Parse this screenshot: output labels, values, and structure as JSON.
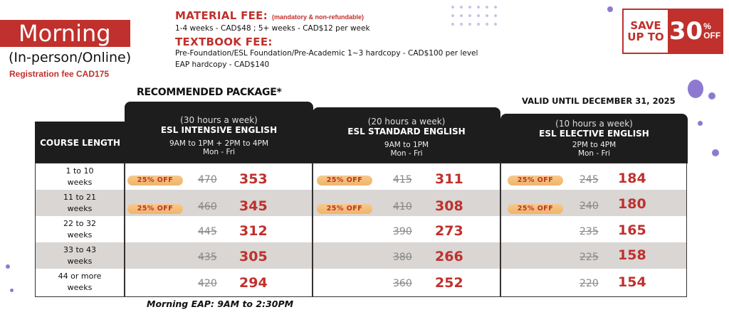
{
  "header": {
    "session_title": "Morning",
    "mode": "(In-person/Online)",
    "registration_fee": "Registration fee CAD175"
  },
  "fees": {
    "material_title": "MATERIAL FEE:",
    "material_note": "(mandatory & non-refundable)",
    "material_line": "1-4 weeks - CAD$48 ; 5+ weeks - CAD$12 per week",
    "textbook_title": "TEXTBOOK FEE:",
    "textbook_line1": "Pre-Foundation/ESL Foundation/Pre-Academic 1~3 hardcopy - CAD$100 per level",
    "textbook_line2": "EAP hardcopy - CAD$140"
  },
  "promo": {
    "save_line1": "SAVE",
    "save_line2": "UP TO",
    "percent": "30",
    "percent_sign": "%",
    "off": "OFF",
    "accent": "#c0302c"
  },
  "recommended_label": "RECOMMENDED PACKAGE*",
  "valid_until": "VALID UNTIL DECEMBER 31, 2025",
  "table": {
    "length_header": "COURSE LENGTH",
    "programs": [
      {
        "hours": "(30 hours a week)",
        "name": "ESL INTENSIVE ENGLISH",
        "time": "9AM to 1PM + 2PM to 4PM",
        "days": "Mon - Fri"
      },
      {
        "hours": "(20 hours a week)",
        "name": "ESL STANDARD ENGLISH",
        "time": "9AM to 1PM",
        "days": "Mon - Fri"
      },
      {
        "hours": "(10 hours a week)",
        "name": "ESL ELECTIVE ENGLISH",
        "time": "2PM to 4PM",
        "days": "Mon - Fri"
      }
    ],
    "discount_label": "25% OFF",
    "rows": [
      {
        "len1": "1 to 10",
        "len2": "weeks",
        "badge": true,
        "prices": [
          {
            "old": "470",
            "new": "353"
          },
          {
            "old": "415",
            "new": "311"
          },
          {
            "old": "245",
            "new": "184"
          }
        ]
      },
      {
        "len1": "11 to 21",
        "len2": "weeks",
        "badge": true,
        "prices": [
          {
            "old": "460",
            "new": "345"
          },
          {
            "old": "410",
            "new": "308"
          },
          {
            "old": "240",
            "new": "180"
          }
        ]
      },
      {
        "len1": "22 to 32",
        "len2": "weeks",
        "badge": false,
        "prices": [
          {
            "old": "445",
            "new": "312"
          },
          {
            "old": "390",
            "new": "273"
          },
          {
            "old": "235",
            "new": "165"
          }
        ]
      },
      {
        "len1": "33 to 43",
        "len2": "weeks",
        "badge": false,
        "prices": [
          {
            "old": "435",
            "new": "305"
          },
          {
            "old": "380",
            "new": "266"
          },
          {
            "old": "225",
            "new": "158"
          }
        ]
      },
      {
        "len1": "44 or more",
        "len2": "weeks",
        "badge": false,
        "prices": [
          {
            "old": "420",
            "new": "294"
          },
          {
            "old": "360",
            "new": "252"
          },
          {
            "old": "220",
            "new": "154"
          }
        ]
      }
    ]
  },
  "eap_note": "Morning EAP: 9AM to 2:30PM"
}
